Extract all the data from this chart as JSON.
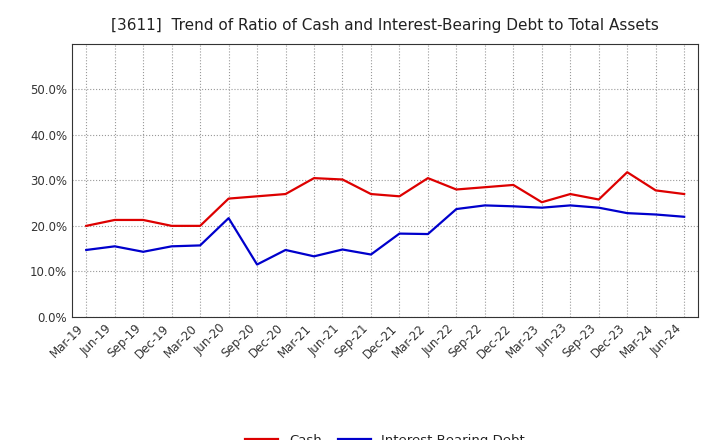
{
  "title": "[3611]  Trend of Ratio of Cash and Interest-Bearing Debt to Total Assets",
  "x_labels": [
    "Mar-19",
    "Jun-19",
    "Sep-19",
    "Dec-19",
    "Mar-20",
    "Jun-20",
    "Sep-20",
    "Dec-20",
    "Mar-21",
    "Jun-21",
    "Sep-21",
    "Dec-21",
    "Mar-22",
    "Jun-22",
    "Sep-22",
    "Dec-22",
    "Mar-23",
    "Jun-23",
    "Sep-23",
    "Dec-23",
    "Mar-24",
    "Jun-24"
  ],
  "cash": [
    0.2,
    0.213,
    0.213,
    0.2,
    0.2,
    0.26,
    0.265,
    0.27,
    0.305,
    0.302,
    0.27,
    0.265,
    0.305,
    0.28,
    0.285,
    0.29,
    0.252,
    0.27,
    0.258,
    0.318,
    0.278,
    0.27
  ],
  "ibd": [
    0.147,
    0.155,
    0.143,
    0.155,
    0.157,
    0.217,
    0.115,
    0.147,
    0.133,
    0.148,
    0.137,
    0.183,
    0.182,
    0.237,
    0.245,
    0.243,
    0.24,
    0.245,
    0.24,
    0.228,
    0.225,
    0.22
  ],
  "cash_color": "#dd0000",
  "ibd_color": "#0000cc",
  "background_color": "#ffffff",
  "plot_bg_color": "#ffffff",
  "grid_color": "#999999",
  "ylim": [
    0.0,
    0.6
  ],
  "yticks": [
    0.0,
    0.1,
    0.2,
    0.3,
    0.4,
    0.5
  ],
  "legend_cash": "Cash",
  "legend_ibd": "Interest-Bearing Debt",
  "line_width": 1.6,
  "title_fontsize": 11,
  "tick_fontsize": 8.5
}
